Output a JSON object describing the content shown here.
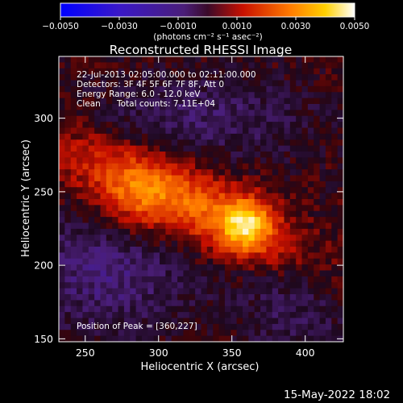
{
  "chart_data": {
    "type": "heatmap",
    "title": "Reconstructed RHESSI Image",
    "xlabel": "Heliocentric X (arcsec)",
    "ylabel": "Heliocentric Y (arcsec)",
    "xlim": [
      232,
      426
    ],
    "ylim": [
      148,
      342
    ],
    "x_ticks": [
      250,
      300,
      350,
      400
    ],
    "y_ticks": [
      150,
      200,
      250,
      300
    ],
    "colorbar": {
      "range": [
        -0.005,
        0.005
      ],
      "tick_values": [
        -0.005,
        -0.003,
        -0.001,
        0.001,
        0.003,
        0.005
      ],
      "tick_labels": [
        "−0.0050",
        "−0.0030",
        "−0.0010",
        "0.0010",
        "0.0030",
        "0.0050"
      ],
      "unit_label": "(photons cm⁻² s⁻¹ asec⁻²)",
      "colormap": "RHESSI: blue → purple → red → orange → yellow → white"
    },
    "source_peak": {
      "x": 360,
      "y": 227,
      "value": 0.0048
    },
    "annotations": [
      "22-Jul-2013 02:05:00.000 to 02:11:00.000",
      "Detectors: 3F 4F 5F 6F 7F 8F, Att 0",
      "Energy Range: 6.0 - 12.0 keV",
      "Clean",
      "Total counts: 7.11E+04"
    ],
    "peak_label": "Position of Peak = [360,227]",
    "footer_date": "15-May-2022 18:02"
  }
}
